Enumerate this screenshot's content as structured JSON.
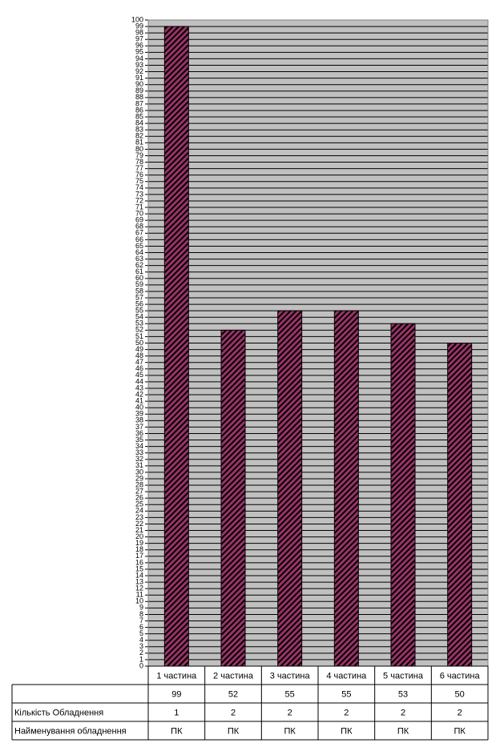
{
  "chart_data": {
    "type": "bar",
    "categories": [
      "1 частина",
      "2 частина",
      "3 частина",
      "4 частина",
      "5 частина",
      "6 частина"
    ],
    "values": [
      99,
      52,
      55,
      55,
      53,
      50
    ],
    "color": "#993366",
    "ylim": [
      0,
      100
    ],
    "yticks": [
      0,
      1,
      2,
      3,
      4,
      5,
      6,
      7,
      8,
      9,
      10,
      11,
      12,
      13,
      14,
      15,
      16,
      17,
      18,
      19,
      20,
      21,
      22,
      23,
      24,
      25,
      26,
      27,
      28,
      29,
      30,
      31,
      32,
      33,
      34,
      35,
      36,
      37,
      38,
      39,
      40,
      41,
      42,
      43,
      44,
      45,
      46,
      47,
      48,
      49,
      50,
      51,
      52,
      53,
      54,
      55,
      56,
      57,
      58,
      59,
      60,
      61,
      62,
      63,
      64,
      65,
      66,
      67,
      68,
      69,
      70,
      71,
      72,
      73,
      74,
      75,
      76,
      77,
      78,
      79,
      80,
      81,
      82,
      83,
      84,
      85,
      86,
      87,
      88,
      89,
      90,
      91,
      92,
      93,
      94,
      95,
      96,
      97,
      98,
      99,
      100
    ],
    "grid": true,
    "table_rows": [
      {
        "label": "Кількість Обладнення",
        "values": [
          1,
          2,
          2,
          2,
          2,
          2
        ]
      },
      {
        "label": "Найменування обладнення",
        "values": [
          "ПК",
          "ПК",
          "ПК",
          "ПК",
          "ПК",
          "ПК"
        ]
      }
    ]
  }
}
